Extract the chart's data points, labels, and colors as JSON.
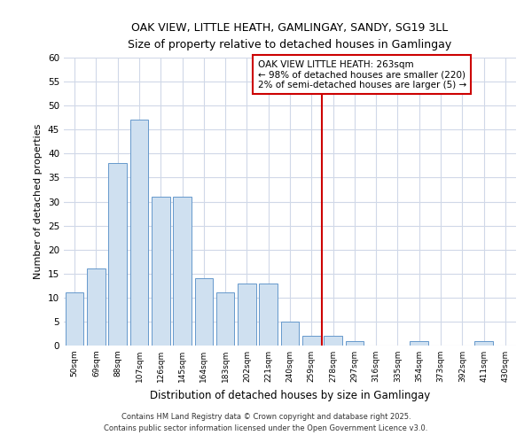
{
  "title1": "OAK VIEW, LITTLE HEATH, GAMLINGAY, SANDY, SG19 3LL",
  "title2": "Size of property relative to detached houses in Gamlingay",
  "xlabel": "Distribution of detached houses by size in Gamlingay",
  "ylabel": "Number of detached properties",
  "categories": [
    "50sqm",
    "69sqm",
    "88sqm",
    "107sqm",
    "126sqm",
    "145sqm",
    "164sqm",
    "183sqm",
    "202sqm",
    "221sqm",
    "240sqm",
    "259sqm",
    "278sqm",
    "297sqm",
    "316sqm",
    "335sqm",
    "354sqm",
    "373sqm",
    "392sqm",
    "411sqm",
    "430sqm"
  ],
  "values": [
    11,
    16,
    38,
    47,
    31,
    31,
    14,
    11,
    13,
    13,
    5,
    2,
    2,
    1,
    0,
    0,
    1,
    0,
    0,
    1,
    0
  ],
  "bar_color": "#cfe0f0",
  "bar_edge_color": "#6699cc",
  "vline_x": 11.5,
  "vline_color": "#cc0000",
  "annotation_title": "OAK VIEW LITTLE HEATH: 263sqm",
  "annotation_line1": "← 98% of detached houses are smaller (220)",
  "annotation_line2": "2% of semi-detached houses are larger (5) →",
  "annotation_box_color": "#cc0000",
  "ylim": [
    0,
    60
  ],
  "yticks": [
    0,
    5,
    10,
    15,
    20,
    25,
    30,
    35,
    40,
    45,
    50,
    55,
    60
  ],
  "footer1": "Contains HM Land Registry data © Crown copyright and database right 2025.",
  "footer2": "Contains public sector information licensed under the Open Government Licence v3.0.",
  "bg_color": "#ffffff",
  "plot_bg_color": "#ffffff",
  "grid_color": "#d0d8e8"
}
